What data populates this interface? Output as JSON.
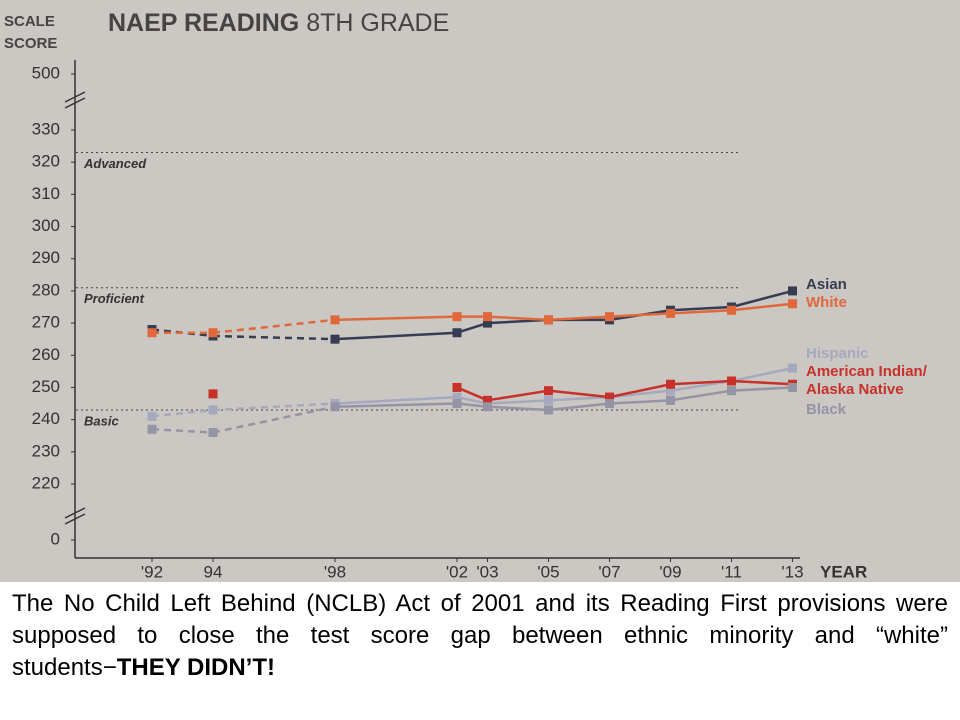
{
  "chart_data": {
    "type": "line",
    "title": [
      "NAEP READING",
      "8TH GRADE"
    ],
    "y_label": [
      "SCALE",
      "SCORE"
    ],
    "x_label": "YEAR",
    "x": [
      1992,
      1994,
      1998,
      2002,
      2003,
      2005,
      2007,
      2009,
      2011,
      2013
    ],
    "xticks": [
      {
        "value": 1992,
        "label": "'92"
      },
      {
        "value": 1994,
        "label": "94"
      },
      {
        "value": 1998,
        "label": "'98"
      },
      {
        "value": 2002,
        "label": "'02"
      },
      {
        "value": 2003,
        "label": "'03"
      },
      {
        "value": 2005,
        "label": "'05"
      },
      {
        "value": 2007,
        "label": "'07"
      },
      {
        "value": 2009,
        "label": "'09"
      },
      {
        "value": 2011,
        "label": "'11"
      },
      {
        "value": 2013,
        "label": "'13"
      }
    ],
    "ylim": [
      0,
      500
    ],
    "axis_breaks": [
      [
        0,
        220
      ],
      [
        330,
        500
      ]
    ],
    "yticks": [
      0,
      220,
      230,
      240,
      250,
      260,
      270,
      280,
      290,
      300,
      310,
      320,
      330,
      500
    ],
    "reference_lines": [
      {
        "label": "Advanced",
        "value": 323
      },
      {
        "label": "Proficient",
        "value": 281
      },
      {
        "label": "Basic",
        "value": 243
      }
    ],
    "series": [
      {
        "name": "Asian",
        "color": "#363d52",
        "values": [
          268,
          266,
          265,
          267,
          270,
          271,
          271,
          274,
          275,
          280
        ]
      },
      {
        "name": "White",
        "color": "#e0683a",
        "values": [
          267,
          267,
          271,
          272,
          272,
          271,
          272,
          273,
          274,
          276
        ]
      },
      {
        "name": "Hispanic",
        "color": "#a6a8be",
        "values": [
          241,
          243,
          245,
          247,
          245,
          246,
          247,
          249,
          252,
          256
        ]
      },
      {
        "name": "American Indian/Alaska Native",
        "color": "#c8302a",
        "values": [
          null,
          248,
          null,
          250,
          246,
          249,
          247,
          251,
          252,
          251
        ]
      },
      {
        "name": "Black",
        "color": "#9494a4",
        "values": [
          237,
          236,
          244,
          245,
          244,
          243,
          245,
          246,
          249,
          250
        ]
      }
    ]
  },
  "caption": {
    "text": "The No Child Left Behind (NCLB) Act of 2001 and its Reading First provisions were supposed to close the test score gap between ethnic minority and “white” students−",
    "emphasis": "THEY DIDN’T!"
  }
}
